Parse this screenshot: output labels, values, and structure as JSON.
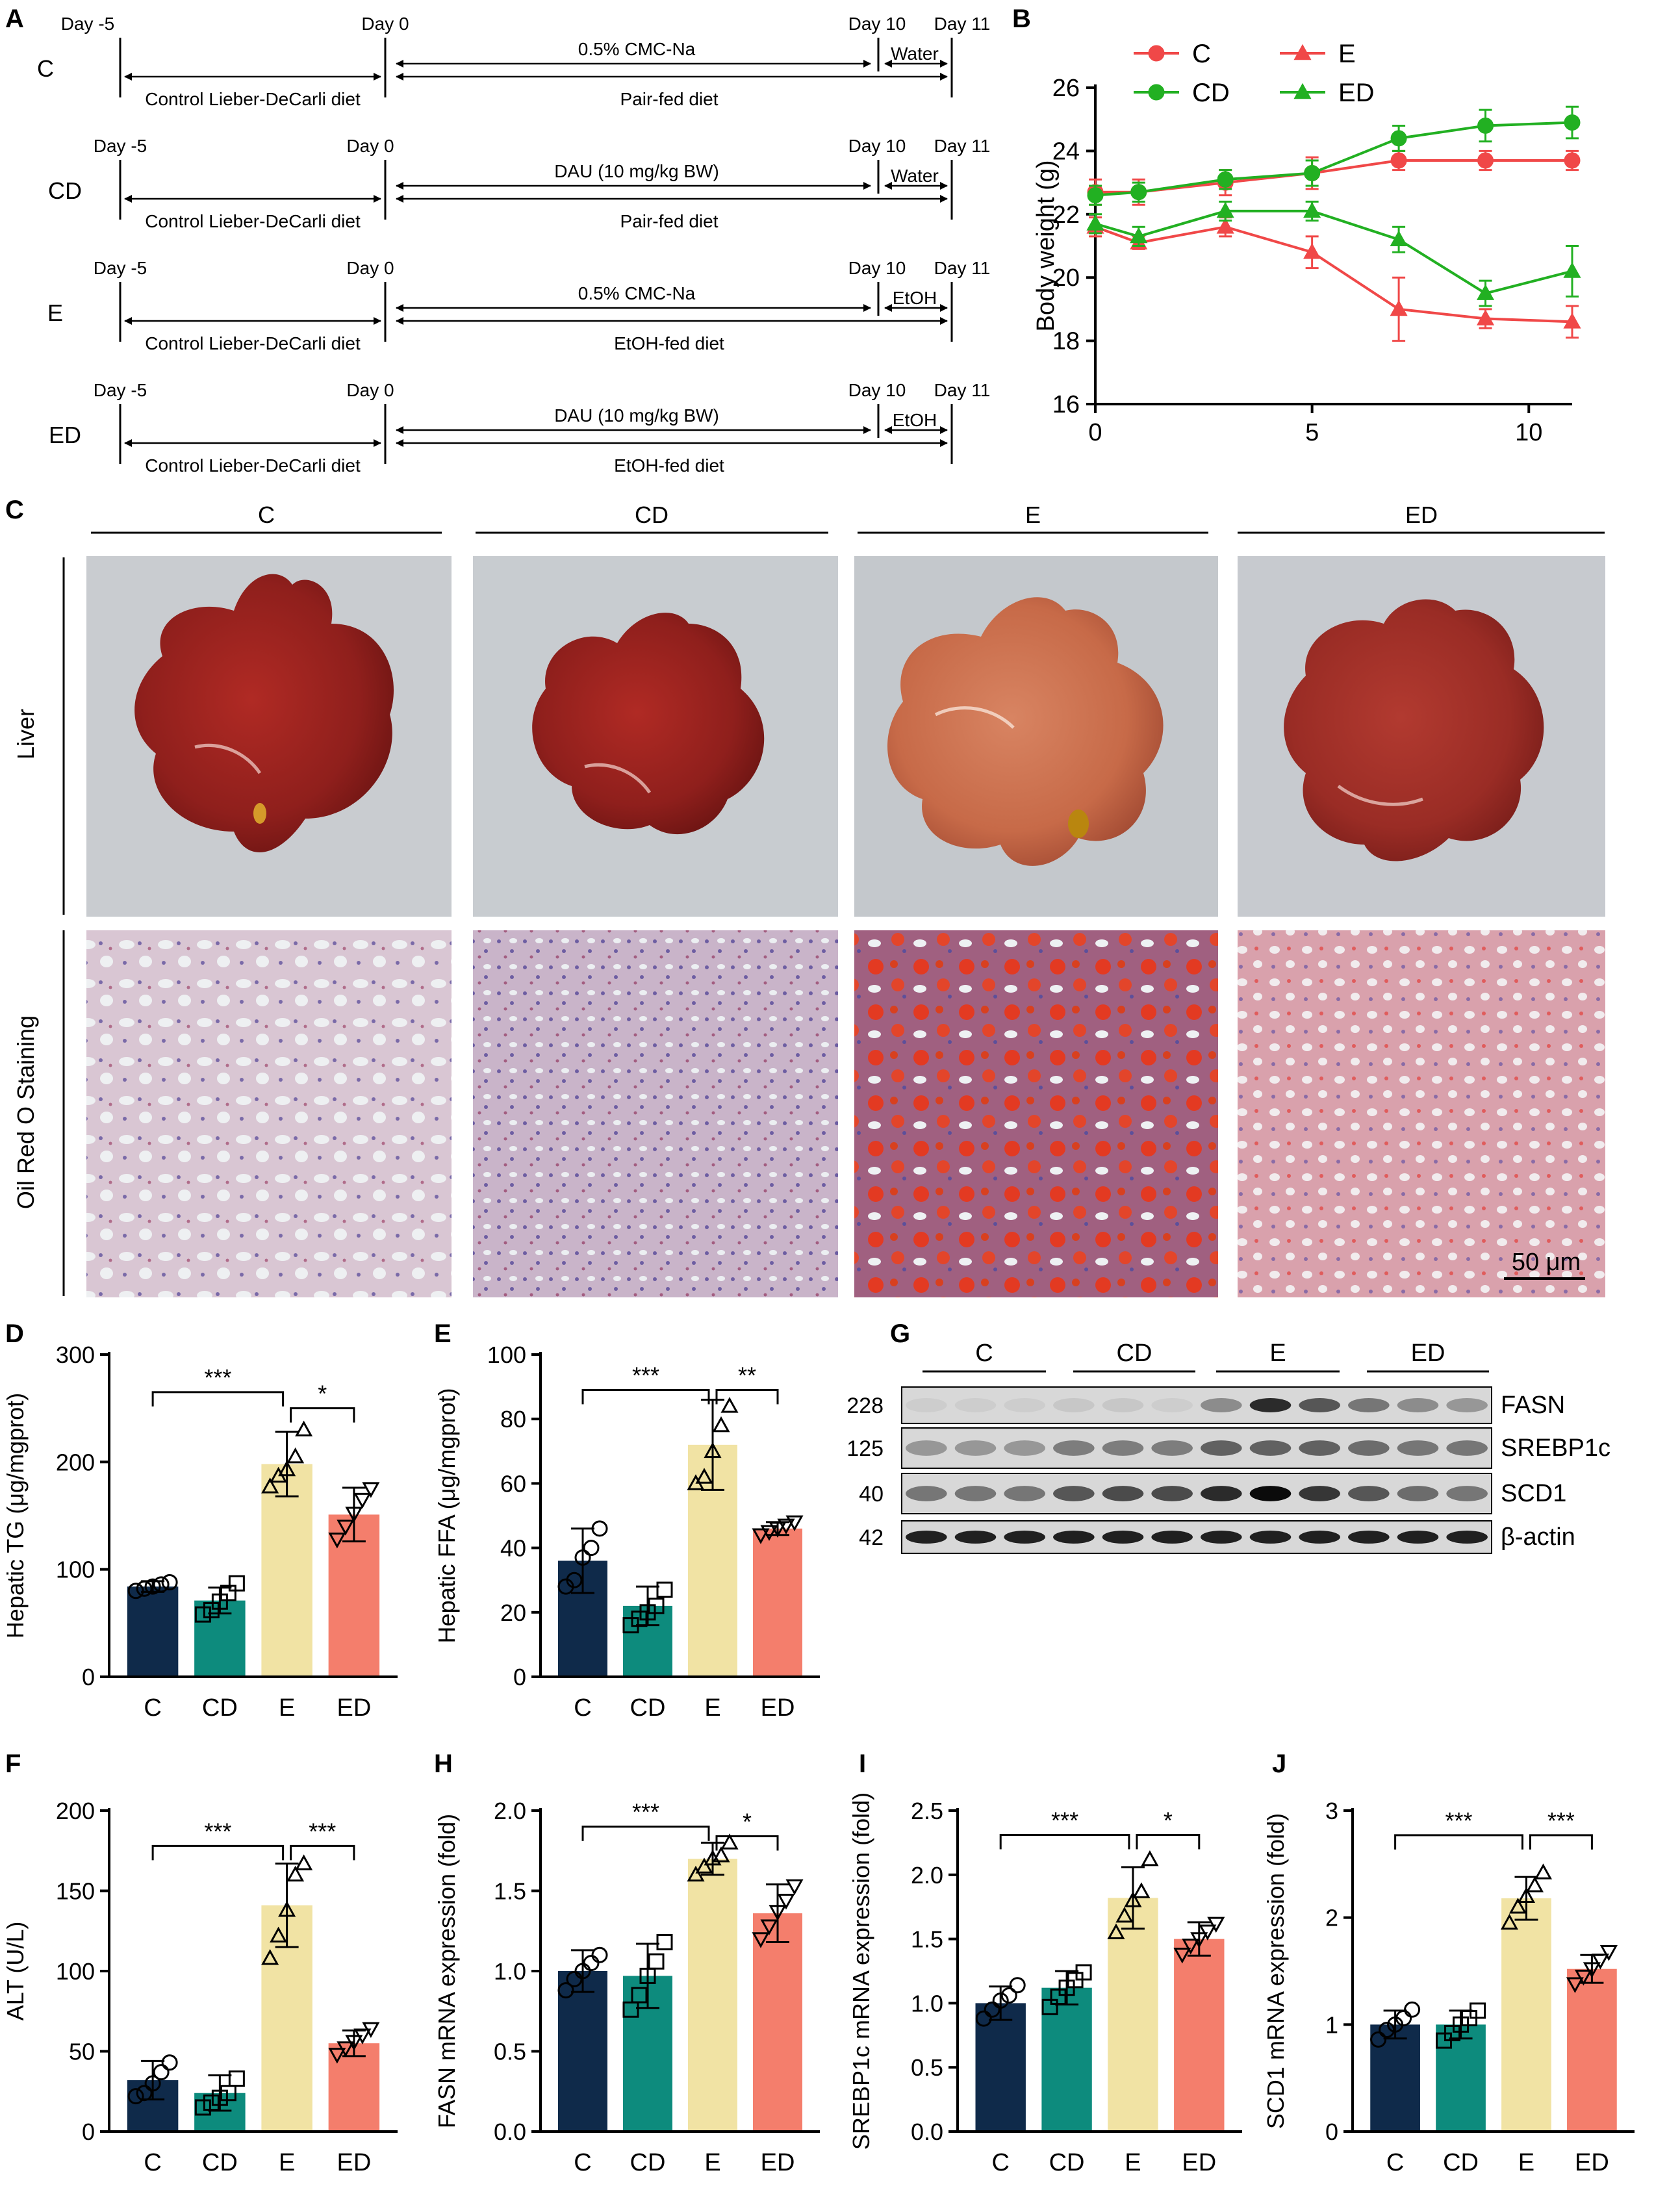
{
  "colors": {
    "c_bar": "#0f2a4a",
    "cd_bar": "#0d8b7d",
    "e_bar": "#f1e3a4",
    "ed_bar": "#f47e6c",
    "red_line": "#f04848",
    "green_line": "#22b022"
  },
  "panel_letters": [
    "A",
    "B",
    "C",
    "D",
    "E",
    "F",
    "G",
    "H",
    "I",
    "J"
  ],
  "panel_a": {
    "rows": [
      {
        "group": "C",
        "day_m5": "Day -5",
        "day_0": "Day 0",
        "day_10": "Day 10",
        "day_11": "Day 11",
        "top_mid": "0.5% CMC-Na",
        "top_end": "Water",
        "bottom_left": "Control Lieber-DeCarli diet",
        "bottom_mid": "Pair-fed diet"
      },
      {
        "group": "CD",
        "day_m5": "Day -5",
        "day_0": "Day 0",
        "day_10": "Day 10",
        "day_11": "Day 11",
        "top_mid": "DAU (10 mg/kg BW)",
        "top_end": "Water",
        "bottom_left": "Control Lieber-DeCarli diet",
        "bottom_mid": "Pair-fed diet"
      },
      {
        "group": "E",
        "day_m5": "Day -5",
        "day_0": "Day 0",
        "day_10": "Day 10",
        "day_11": "Day 11",
        "top_mid": "0.5% CMC-Na",
        "top_end": "EtOH",
        "bottom_left": "Control Lieber-DeCarli diet",
        "bottom_mid": "EtOH-fed diet"
      },
      {
        "group": "ED",
        "day_m5": "Day -5",
        "day_0": "Day 0",
        "day_10": "Day 10",
        "day_11": "Day 11",
        "top_mid": "DAU (10 mg/kg BW)",
        "top_end": "EtOH",
        "bottom_left": "Control Lieber-DeCarli diet",
        "bottom_mid": "EtOH-fed diet"
      }
    ]
  },
  "panel_c": {
    "group_labels": [
      "C",
      "CD",
      "E",
      "ED"
    ],
    "row_labels": [
      "Liver",
      "Oil Red O Staining"
    ],
    "scale_bar": "50 μm"
  },
  "panel_g": {
    "group_labels": [
      "C",
      "CD",
      "E",
      "ED"
    ],
    "bands": [
      {
        "protein": "FASN",
        "mw": "228",
        "intensity": [
          0.05,
          0.05,
          0.05,
          0.08,
          0.08,
          0.05,
          0.35,
          0.8,
          0.6,
          0.45,
          0.35,
          0.3
        ]
      },
      {
        "protein": "SREBP1c",
        "mw": "125",
        "intensity": [
          0.3,
          0.3,
          0.3,
          0.42,
          0.42,
          0.42,
          0.55,
          0.55,
          0.55,
          0.5,
          0.45,
          0.45
        ]
      },
      {
        "protein": "SCD1",
        "mw": "40",
        "intensity": [
          0.45,
          0.45,
          0.45,
          0.6,
          0.65,
          0.65,
          0.8,
          0.95,
          0.75,
          0.6,
          0.5,
          0.45
        ]
      },
      {
        "protein": "β-actin",
        "mw": "42",
        "intensity": [
          0.85,
          0.85,
          0.85,
          0.85,
          0.85,
          0.85,
          0.85,
          0.85,
          0.85,
          0.85,
          0.85,
          0.85
        ]
      }
    ]
  },
  "chart_data": [
    {
      "id": "B",
      "type": "line",
      "title": "",
      "xlabel": "",
      "ylabel": "Body weight (g)",
      "xlim": [
        0,
        11
      ],
      "ylim": [
        16,
        26
      ],
      "xticks": [
        "0",
        "5",
        "10"
      ],
      "xtick_values": [
        0,
        5,
        10
      ],
      "yticks": [
        "16",
        "18",
        "20",
        "22",
        "24",
        "26"
      ],
      "ytick_values": [
        16,
        18,
        20,
        22,
        24,
        26
      ],
      "series": [
        {
          "name": "C",
          "color": "#f04848",
          "marker": "circle",
          "x": [
            0,
            1,
            3,
            5,
            7,
            9,
            11
          ],
          "values": [
            22.7,
            22.7,
            23.0,
            23.3,
            23.7,
            23.7,
            23.7
          ],
          "err": [
            0.4,
            0.4,
            0.4,
            0.5,
            0.3,
            0.3,
            0.3
          ]
        },
        {
          "name": "CD",
          "color": "#22b022",
          "marker": "circle",
          "x": [
            0,
            1,
            3,
            5,
            7,
            9,
            11
          ],
          "values": [
            22.6,
            22.7,
            23.1,
            23.3,
            24.4,
            24.8,
            24.9
          ],
          "err": [
            0.3,
            0.3,
            0.3,
            0.4,
            0.4,
            0.5,
            0.5
          ]
        },
        {
          "name": "E",
          "color": "#f04848",
          "marker": "triangle",
          "x": [
            0,
            1,
            3,
            5,
            7,
            9,
            11
          ],
          "values": [
            21.6,
            21.1,
            21.6,
            20.8,
            19.0,
            18.7,
            18.6
          ],
          "err": [
            0.3,
            0.2,
            0.3,
            0.5,
            1.0,
            0.3,
            0.5
          ]
        },
        {
          "name": "ED",
          "color": "#22b022",
          "marker": "triangle",
          "x": [
            0,
            1,
            3,
            5,
            7,
            9,
            11
          ],
          "values": [
            21.7,
            21.3,
            22.1,
            22.1,
            21.2,
            19.5,
            20.2
          ],
          "err": [
            0.3,
            0.3,
            0.3,
            0.3,
            0.4,
            0.4,
            0.8
          ]
        }
      ]
    },
    {
      "id": "D",
      "type": "bar",
      "ylabel": "Hepatic TG (μg/mgprot)",
      "categories": [
        "C",
        "CD",
        "E",
        "ED"
      ],
      "values": [
        84,
        71,
        198,
        151
      ],
      "err": [
        5,
        12,
        30,
        25
      ],
      "ylim": [
        0,
        300
      ],
      "yticks": [
        "0",
        "100",
        "200",
        "300"
      ],
      "ytick_values": [
        0,
        100,
        200,
        300
      ],
      "points": [
        [
          80,
          82,
          84,
          86,
          88
        ],
        [
          58,
          62,
          70,
          78,
          87
        ],
        [
          177,
          187,
          193,
          205,
          230
        ],
        [
          128,
          140,
          152,
          165,
          175
        ]
      ],
      "sig": [
        {
          "a": 0,
          "b": 2,
          "label": "***",
          "y": 265
        },
        {
          "a": 2,
          "b": 3,
          "label": "*",
          "y": 250
        }
      ]
    },
    {
      "id": "E",
      "type": "bar",
      "ylabel": "Hepatic FFA (μg/mgprot)",
      "categories": [
        "C",
        "CD",
        "E",
        "ED"
      ],
      "values": [
        36,
        22,
        72,
        46
      ],
      "err": [
        10,
        6,
        14,
        2
      ],
      "ylim": [
        0,
        100
      ],
      "yticks": [
        "0",
        "20",
        "40",
        "60",
        "80",
        "100"
      ],
      "ytick_values": [
        0,
        20,
        40,
        60,
        80,
        100
      ],
      "points": [
        [
          28,
          30,
          37,
          40,
          46
        ],
        [
          16,
          18,
          20,
          22,
          27
        ],
        [
          60,
          62,
          70,
          78,
          84
        ],
        [
          44,
          45,
          46,
          47,
          48
        ]
      ],
      "sig": [
        {
          "a": 0,
          "b": 2,
          "label": "***",
          "y": 89
        },
        {
          "a": 2,
          "b": 3,
          "label": "**",
          "y": 89
        }
      ]
    },
    {
      "id": "F",
      "type": "bar",
      "ylabel": "ALT (U/L)",
      "categories": [
        "C",
        "CD",
        "E",
        "ED"
      ],
      "values": [
        32,
        24,
        141,
        55
      ],
      "err": [
        12,
        11,
        26,
        8
      ],
      "ylim": [
        0,
        200
      ],
      "yticks": [
        "0",
        "50",
        "100",
        "150",
        "200"
      ],
      "ytick_values": [
        0,
        50,
        100,
        150,
        200
      ],
      "points": [
        [
          22,
          24,
          30,
          37,
          43
        ],
        [
          15,
          18,
          21,
          24,
          33
        ],
        [
          108,
          122,
          138,
          160,
          167
        ],
        [
          48,
          52,
          56,
          60,
          64
        ]
      ],
      "sig": [
        {
          "a": 0,
          "b": 2,
          "label": "***",
          "y": 178
        },
        {
          "a": 2,
          "b": 3,
          "label": "***",
          "y": 178
        }
      ]
    },
    {
      "id": "H",
      "type": "bar",
      "ylabel": "FASN mRNA expression (fold)",
      "categories": [
        "C",
        "CD",
        "E",
        "ED"
      ],
      "values": [
        1.0,
        0.97,
        1.7,
        1.36
      ],
      "err": [
        0.13,
        0.2,
        0.1,
        0.18
      ],
      "ylim": [
        0,
        2.0
      ],
      "yticks": [
        "0.0",
        "0.5",
        "1.0",
        "1.5",
        "2.0"
      ],
      "ytick_values": [
        0,
        0.5,
        1.0,
        1.5,
        2.0
      ],
      "points": [
        [
          0.88,
          0.95,
          1.0,
          1.05,
          1.1
        ],
        [
          0.76,
          0.85,
          0.97,
          1.06,
          1.18
        ],
        [
          1.6,
          1.65,
          1.7,
          1.72,
          1.8
        ],
        [
          1.2,
          1.28,
          1.37,
          1.44,
          1.53
        ]
      ],
      "sig": [
        {
          "a": 0,
          "b": 2,
          "label": "***",
          "y": 1.9
        },
        {
          "a": 2,
          "b": 3,
          "label": "*",
          "y": 1.84
        }
      ]
    },
    {
      "id": "I",
      "type": "bar",
      "ylabel": "SREBP1c mRNA expression (fold)",
      "categories": [
        "C",
        "CD",
        "E",
        "ED"
      ],
      "values": [
        1.0,
        1.12,
        1.82,
        1.5
      ],
      "err": [
        0.13,
        0.13,
        0.24,
        0.13
      ],
      "ylim": [
        0,
        2.5
      ],
      "yticks": [
        "0.0",
        "0.5",
        "1.0",
        "1.5",
        "2.0",
        "2.5"
      ],
      "ytick_values": [
        0,
        0.5,
        1.0,
        1.5,
        2.0,
        2.5
      ],
      "points": [
        [
          0.88,
          0.95,
          1.02,
          1.06,
          1.14
        ],
        [
          0.97,
          1.05,
          1.12,
          1.18,
          1.24
        ],
        [
          1.55,
          1.68,
          1.8,
          1.87,
          2.12
        ],
        [
          1.38,
          1.45,
          1.5,
          1.56,
          1.62
        ]
      ],
      "sig": [
        {
          "a": 0,
          "b": 2,
          "label": "***",
          "y": 2.31
        },
        {
          "a": 2,
          "b": 3,
          "label": "*",
          "y": 2.31
        }
      ]
    },
    {
      "id": "J",
      "type": "bar",
      "ylabel": "SCD1 mRNA expression (fold)",
      "categories": [
        "C",
        "CD",
        "E",
        "ED"
      ],
      "values": [
        1.0,
        1.0,
        2.18,
        1.52
      ],
      "err": [
        0.13,
        0.13,
        0.2,
        0.13
      ],
      "ylim": [
        0,
        3
      ],
      "yticks": [
        "0",
        "1",
        "2",
        "3"
      ],
      "ytick_values": [
        0,
        1,
        2,
        3
      ],
      "points": [
        [
          0.86,
          0.95,
          1.0,
          1.06,
          1.14
        ],
        [
          0.85,
          0.92,
          1.0,
          1.06,
          1.13
        ],
        [
          1.95,
          2.1,
          2.2,
          2.3,
          2.42
        ],
        [
          1.38,
          1.45,
          1.52,
          1.6,
          1.68
        ]
      ],
      "sig": [
        {
          "a": 0,
          "b": 2,
          "label": "***",
          "y": 2.77
        },
        {
          "a": 2,
          "b": 3,
          "label": "***",
          "y": 2.77
        }
      ]
    }
  ]
}
